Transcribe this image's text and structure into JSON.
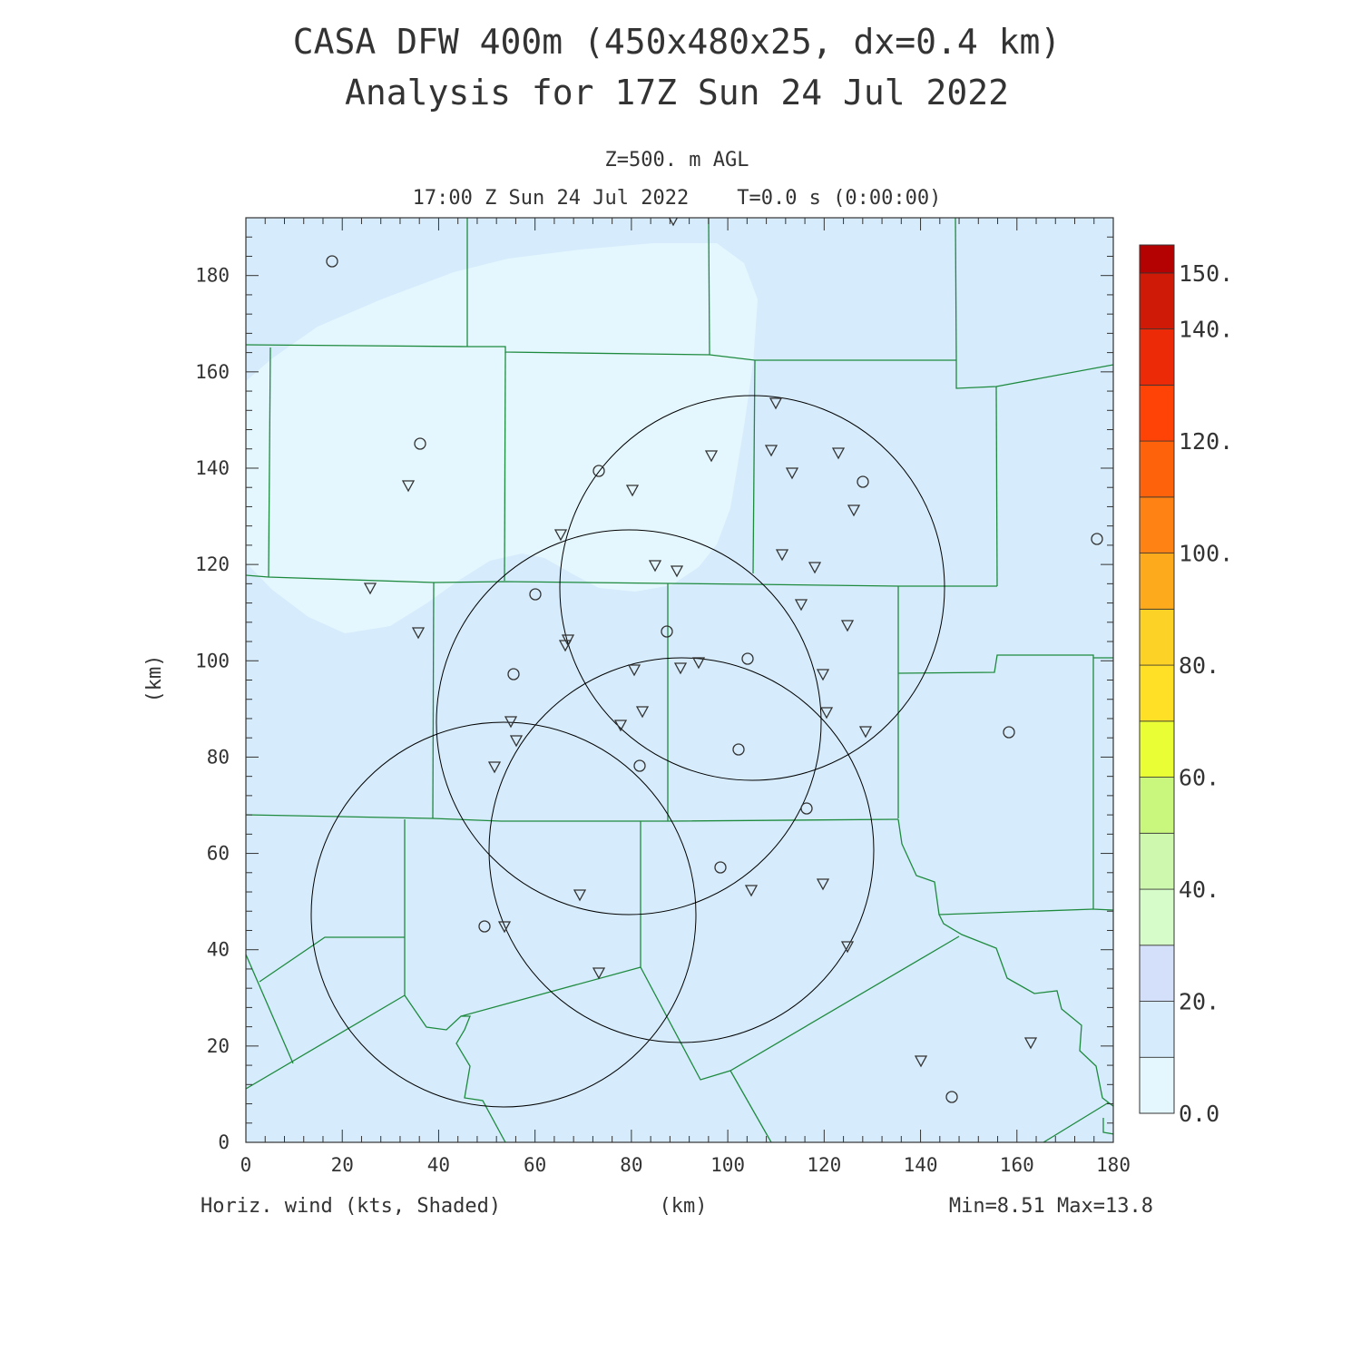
{
  "title": {
    "line1": "CASA DFW 400m (450x480x25, dx=0.4 km)",
    "line2": "Analysis for 17Z Sun 24 Jul 2022"
  },
  "subtitle": {
    "level": "Z=500. m AGL",
    "time": "17:00 Z Sun 24 Jul 2022    T=0.0 s (0:00:00)"
  },
  "axes": {
    "x_label": "(km)",
    "y_label": "(km)",
    "x_range": [
      0,
      180
    ],
    "y_range": [
      0,
      192
    ],
    "x_ticks": [
      "0",
      "20",
      "40",
      "60",
      "80",
      "100",
      "120",
      "140",
      "160",
      "180"
    ],
    "y_ticks": [
      "0",
      "20",
      "40",
      "60",
      "80",
      "100",
      "120",
      "140",
      "160",
      "180"
    ]
  },
  "footer": {
    "field": "Horiz. wind (kts, Shaded)",
    "x_unit": "(km)",
    "range": "Min=8.51 Max=13.8"
  },
  "colorbar": {
    "labels": [
      "0.0",
      "20.",
      "40.",
      "60.",
      "80.",
      "100.",
      "120.",
      "140.",
      "150."
    ],
    "colors": [
      "#e4f7fe",
      "#d6ecfc",
      "#d4dffa",
      "#d6fcca",
      "#cdf8ad",
      "#c9f67c",
      "#e9fe34",
      "#ffe026",
      "#fdd226",
      "#fdaa1c",
      "#ff8214",
      "#fe620a",
      "#ff4206",
      "#ec2a08",
      "#ce1a06",
      "#b40202"
    ]
  },
  "map_colors": {
    "background": "#d6ecfc",
    "low_wind": "#e4f7fe",
    "counties": "#1e8a3e",
    "radar_rings": "#000000",
    "stations": "#333333"
  }
}
